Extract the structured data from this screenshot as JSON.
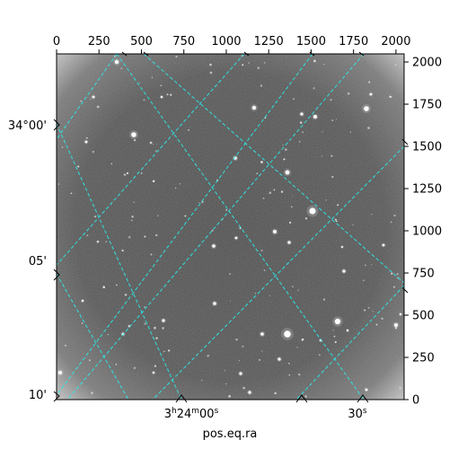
{
  "figure": {
    "x_axis_label": "pos.eq.ra",
    "pixel_axis": {
      "x_max": 2048,
      "y_max": 2048,
      "top_ticks": [
        "0",
        "250",
        "500",
        "750",
        "1000",
        "1250",
        "1500",
        "1750",
        "2000"
      ],
      "right_ticks": [
        "0",
        "250",
        "500",
        "750",
        "1000",
        "1250",
        "1500",
        "1750",
        "2000"
      ]
    },
    "dec_ticks": [
      {
        "label": "34°00'"
      },
      {
        "label": "05'"
      },
      {
        "label": "10'"
      }
    ],
    "ra_ticks": [
      {
        "h": "3",
        "hsup": "h",
        "m": "24",
        "msup": "m",
        "s": "00",
        "ssup": "s"
      },
      {
        "s": "30",
        "ssup": "s"
      }
    ],
    "colors": {
      "grid": "#2ee6e6",
      "background": "#555555",
      "frame": "#000000"
    }
  }
}
